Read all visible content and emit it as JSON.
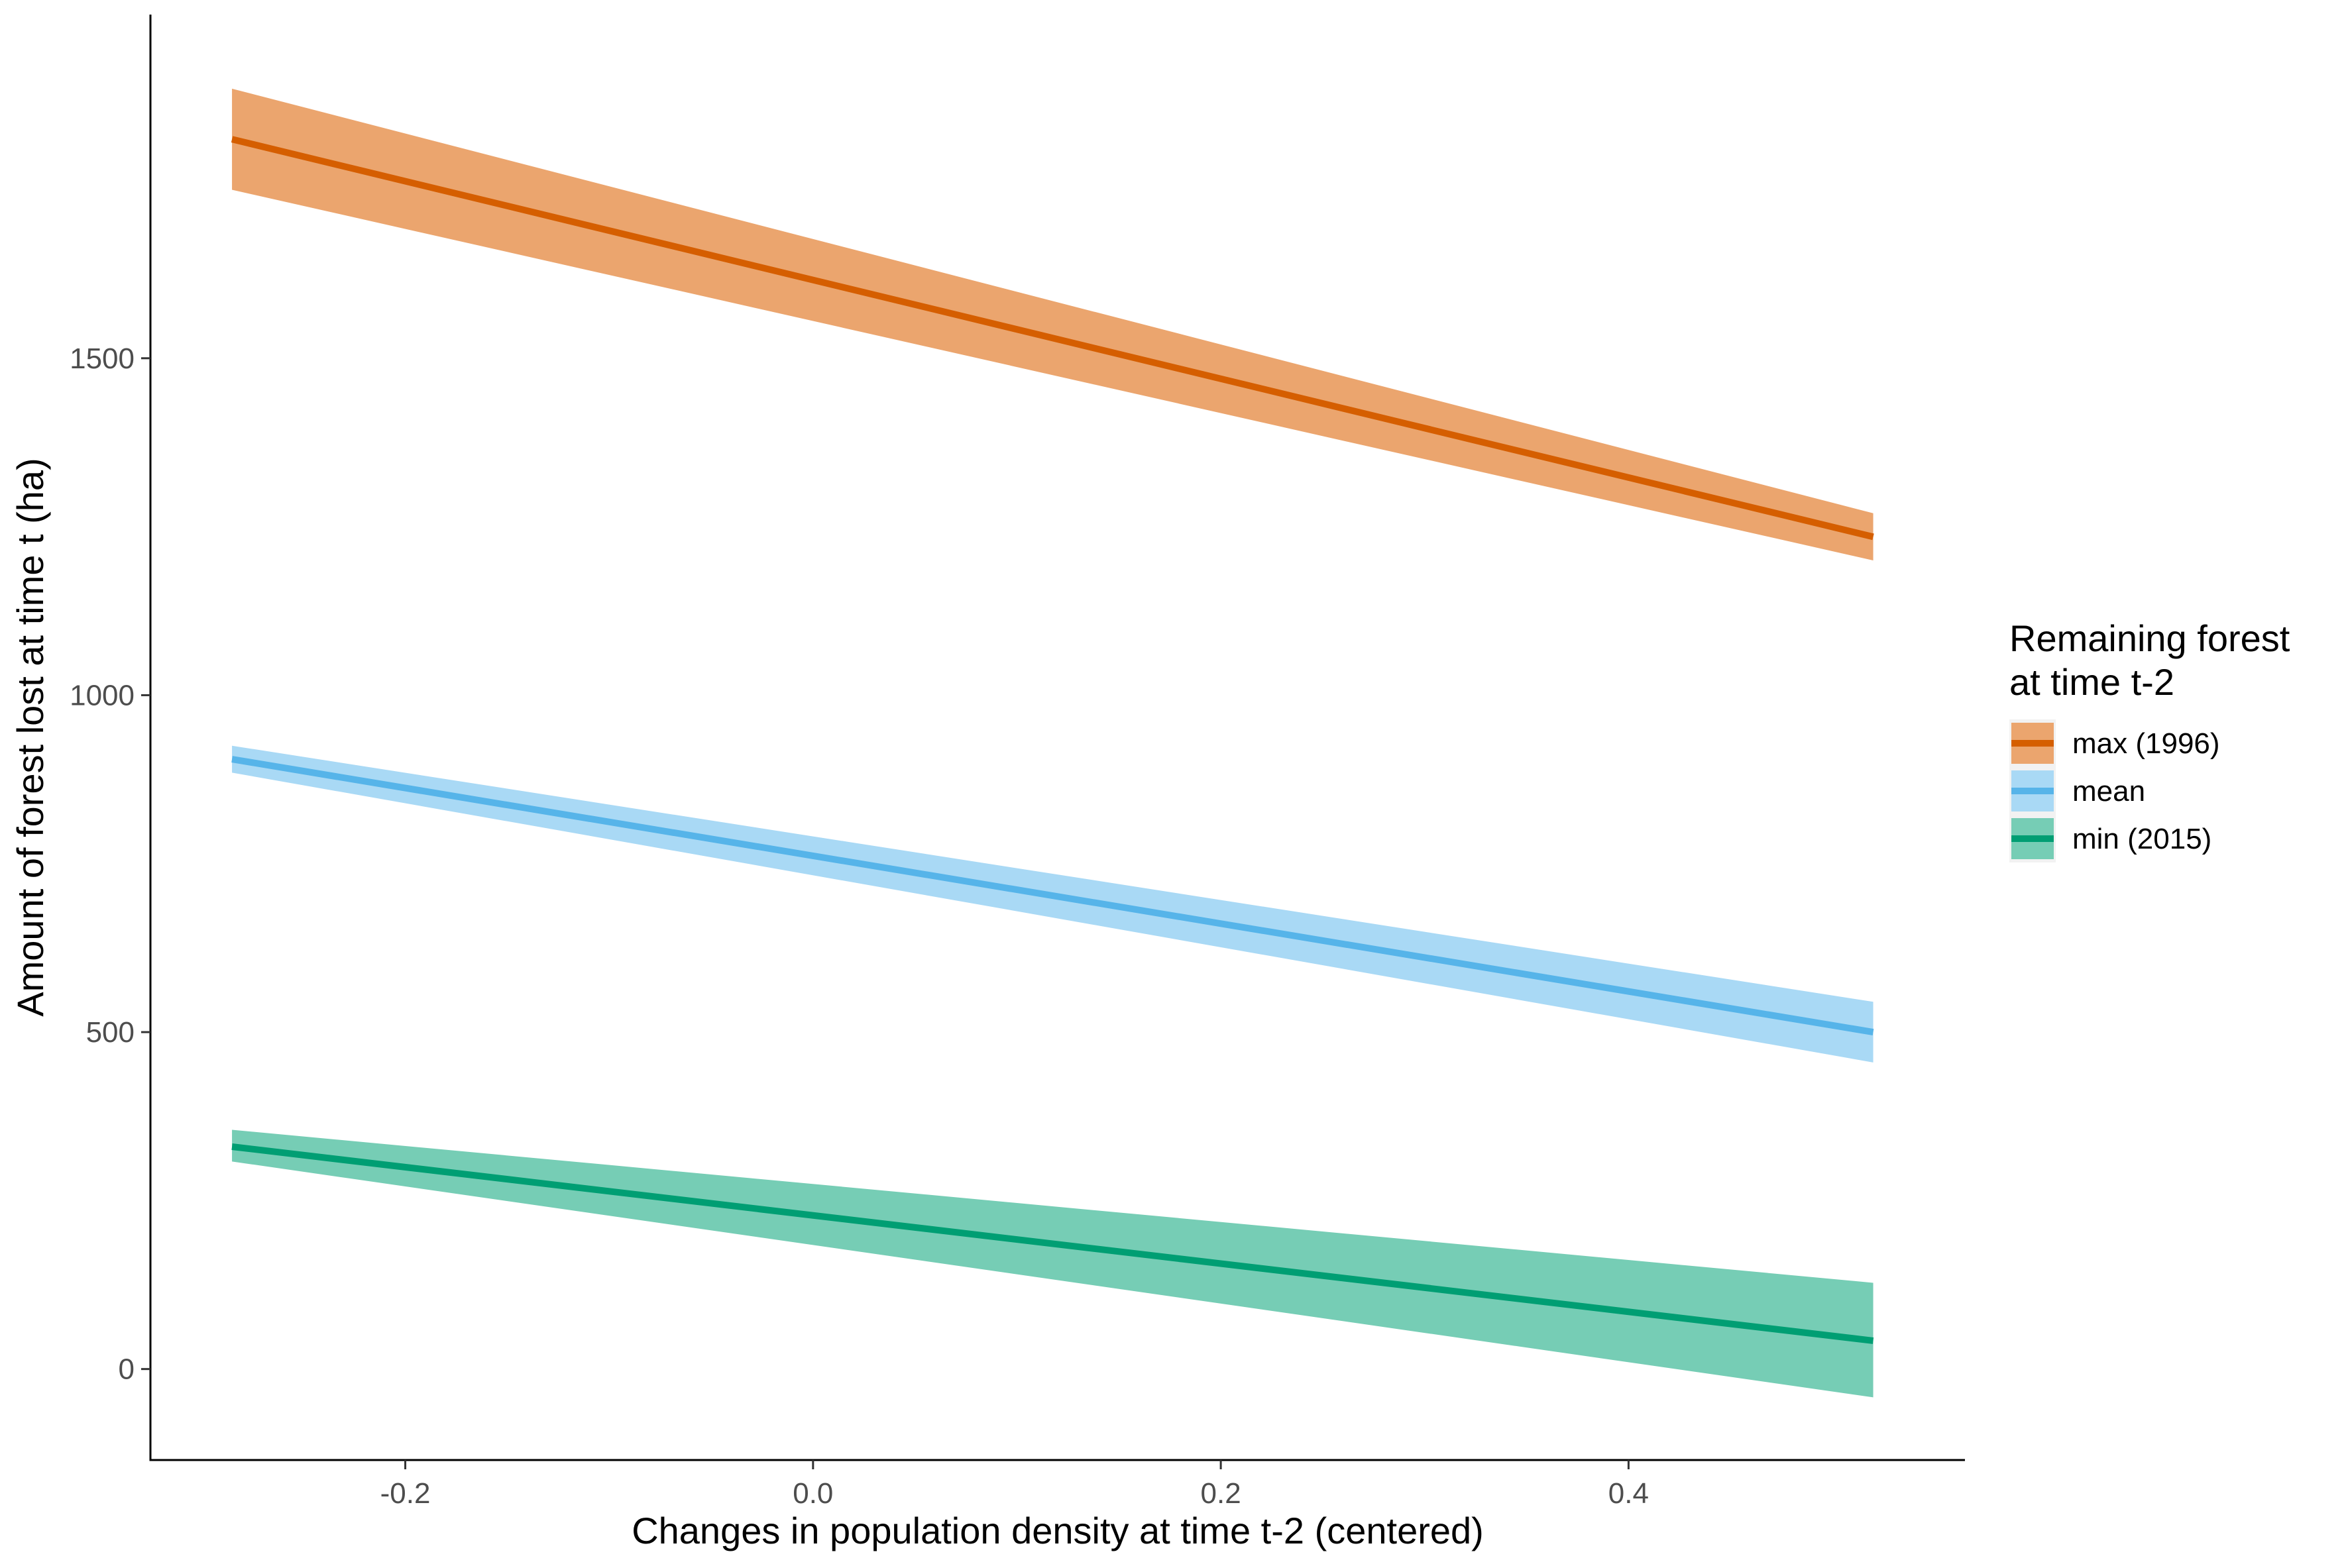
{
  "chart_data": {
    "type": "line",
    "title": "",
    "xlabel": "Changes in population density at time t-2 (centered)",
    "ylabel": "Amount of forest lost at time t (ha)",
    "xlim": [
      -0.325,
      0.565
    ],
    "ylim": [
      -135,
      2010
    ],
    "x_ticks": [
      -0.2,
      0.0,
      0.2,
      0.4
    ],
    "x_tick_labels": [
      "-0.2",
      "0.0",
      "0.2",
      "0.4"
    ],
    "y_ticks": [
      0,
      500,
      1000,
      1500
    ],
    "y_tick_labels": [
      "0",
      "500",
      "1000",
      "1500"
    ],
    "grid": false,
    "legend": {
      "position": "right",
      "title_lines": [
        "Remaining forest",
        "at time t-2"
      ]
    },
    "series": [
      {
        "name": "max (1996)",
        "color": "#D55E00",
        "fill": "#EBA56E",
        "x": [
          -0.285,
          0.52
        ],
        "y": [
          1825,
          1235
        ],
        "lower": [
          1750,
          1200
        ],
        "upper": [
          1900,
          1270
        ]
      },
      {
        "name": "mean",
        "color": "#56B4E9",
        "fill": "#A9D9F5",
        "x": [
          -0.285,
          0.52
        ],
        "y": [
          905,
          500
        ],
        "lower": [
          885,
          455
        ],
        "upper": [
          925,
          545
        ]
      },
      {
        "name": "min (2015)",
        "color": "#009E73",
        "fill": "#76CDB5",
        "x": [
          -0.285,
          0.52
        ],
        "y": [
          330,
          42
        ],
        "lower": [
          308,
          -42
        ],
        "upper": [
          355,
          128
        ]
      }
    ]
  }
}
